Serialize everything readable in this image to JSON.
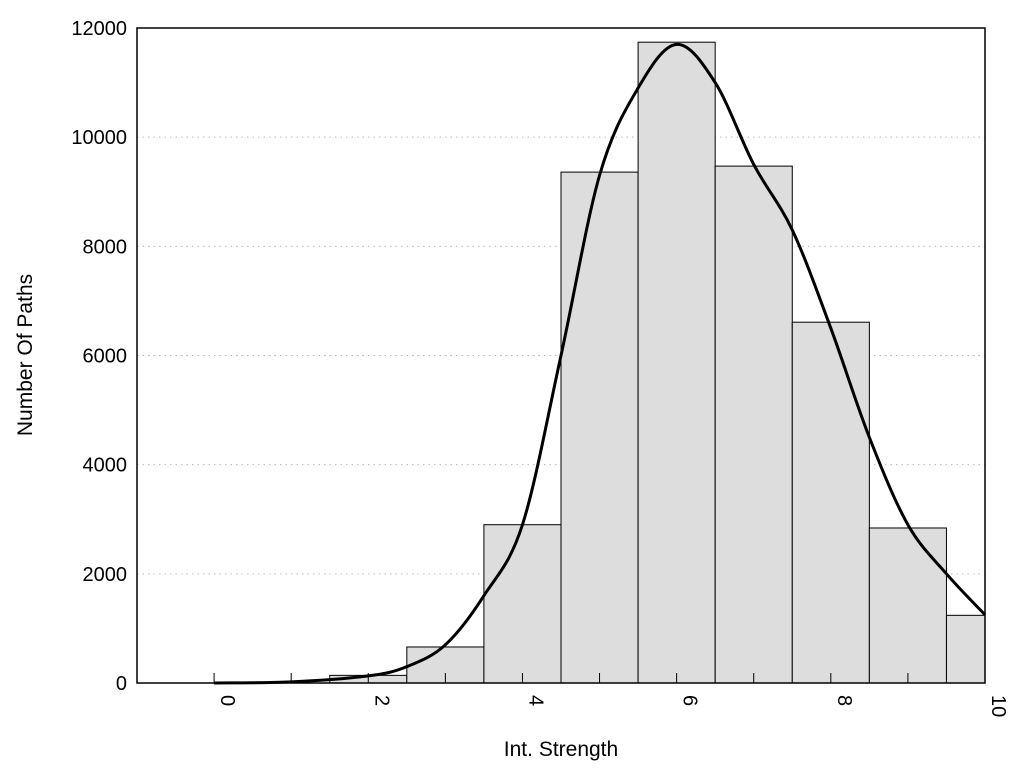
{
  "chart_data": {
    "type": "bar",
    "title": "",
    "xlabel": "Int. Strength",
    "ylabel": "Number Of Paths",
    "xlim": [
      -1,
      10
    ],
    "ylim": [
      0,
      12000
    ],
    "x_ticks": [
      0,
      2,
      4,
      6,
      8,
      10
    ],
    "x_tick_labels": [
      "0",
      "2",
      "4",
      "6",
      "8",
      "10"
    ],
    "x_tick_label_rotation": "vertical",
    "y_ticks": [
      0,
      2000,
      4000,
      6000,
      8000,
      10000,
      12000
    ],
    "y_tick_labels": [
      "0",
      "2000",
      "4000",
      "6000",
      "8000",
      "10000",
      "12000"
    ],
    "grid": "horizontal dotted",
    "bar_width": 1,
    "bar_color": "#dddddd",
    "bar_edge_color": "#000000",
    "categories": [
      0,
      1,
      2,
      3,
      4,
      5,
      6,
      7,
      8,
      9,
      10
    ],
    "values": [
      0,
      0,
      140,
      660,
      2900,
      9360,
      11740,
      9470,
      6610,
      2840,
      1240
    ],
    "curve": {
      "type": "line",
      "color": "#000000",
      "x": [
        0,
        1,
        2,
        2.5,
        3,
        3.5,
        4,
        4.5,
        5,
        5.5,
        6,
        6.5,
        7,
        7.5,
        8,
        8.5,
        9,
        9.5,
        10
      ],
      "y": [
        0,
        20,
        130,
        300,
        700,
        1600,
        2900,
        6000,
        9300,
        10900,
        11700,
        11000,
        9500,
        8300,
        6500,
        4500,
        2900,
        2000,
        1250
      ]
    }
  }
}
